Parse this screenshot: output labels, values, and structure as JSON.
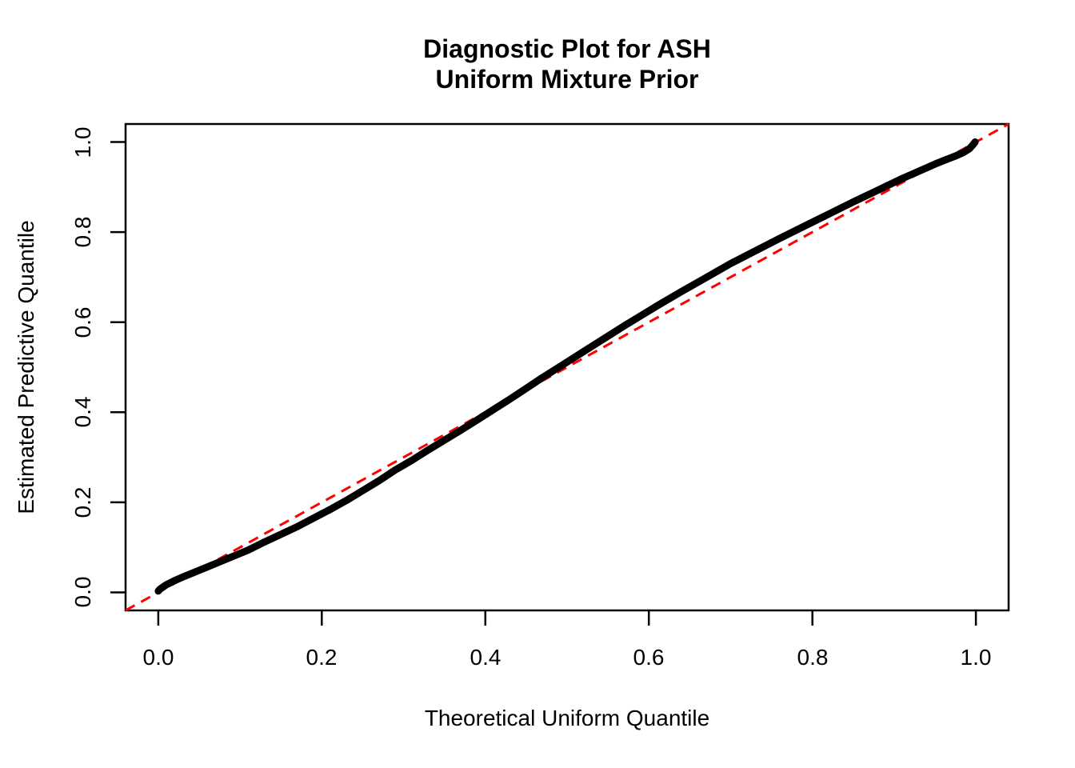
{
  "title": {
    "line1": "Diagnostic Plot for ASH",
    "line2": "Uniform Mixture Prior"
  },
  "colors": {
    "background": "#FFFFFF",
    "foreground": "#000000",
    "reference_line": "#FF0000"
  },
  "chart_data": {
    "type": "line",
    "title": "Diagnostic Plot for ASH\nUniform Mixture Prior",
    "xlabel": "Theoretical Uniform Quantile",
    "ylabel": "Estimated Predictive Quantile",
    "xlim": [
      -0.04,
      1.04
    ],
    "ylim": [
      -0.04,
      1.04
    ],
    "grid": false,
    "legend": false,
    "x_ticks": [
      "0.0",
      "0.2",
      "0.4",
      "0.6",
      "0.8",
      "1.0"
    ],
    "y_ticks": [
      "0.0",
      "0.2",
      "0.4",
      "0.6",
      "0.8",
      "1.0"
    ],
    "series": [
      {
        "name": "estimated-predictive-quantile-curve",
        "color": "#000000",
        "style": "thick-solid",
        "points": [
          [
            0.0,
            0.003
          ],
          [
            0.002,
            0.007
          ],
          [
            0.005,
            0.011
          ],
          [
            0.01,
            0.017
          ],
          [
            0.02,
            0.026
          ],
          [
            0.03,
            0.034
          ],
          [
            0.05,
            0.049
          ],
          [
            0.07,
            0.064
          ],
          [
            0.09,
            0.079
          ],
          [
            0.11,
            0.094
          ],
          [
            0.13,
            0.112
          ],
          [
            0.15,
            0.129
          ],
          [
            0.17,
            0.146
          ],
          [
            0.19,
            0.165
          ],
          [
            0.21,
            0.184
          ],
          [
            0.23,
            0.204
          ],
          [
            0.25,
            0.226
          ],
          [
            0.27,
            0.248
          ],
          [
            0.29,
            0.272
          ],
          [
            0.31,
            0.293
          ],
          [
            0.33,
            0.316
          ],
          [
            0.35,
            0.338
          ],
          [
            0.37,
            0.36
          ],
          [
            0.39,
            0.383
          ],
          [
            0.41,
            0.406
          ],
          [
            0.43,
            0.429
          ],
          [
            0.45,
            0.453
          ],
          [
            0.47,
            0.477
          ],
          [
            0.49,
            0.5
          ],
          [
            0.51,
            0.523
          ],
          [
            0.53,
            0.546
          ],
          [
            0.55,
            0.569
          ],
          [
            0.57,
            0.592
          ],
          [
            0.59,
            0.614
          ],
          [
            0.61,
            0.636
          ],
          [
            0.64,
            0.668
          ],
          [
            0.67,
            0.699
          ],
          [
            0.7,
            0.73
          ],
          [
            0.73,
            0.758
          ],
          [
            0.76,
            0.786
          ],
          [
            0.79,
            0.813
          ],
          [
            0.82,
            0.84
          ],
          [
            0.85,
            0.867
          ],
          [
            0.88,
            0.893
          ],
          [
            0.91,
            0.919
          ],
          [
            0.93,
            0.935
          ],
          [
            0.95,
            0.951
          ],
          [
            0.965,
            0.962
          ],
          [
            0.975,
            0.969
          ],
          [
            0.985,
            0.977
          ],
          [
            0.992,
            0.985
          ],
          [
            0.996,
            0.993
          ],
          [
            0.999,
            1.0
          ]
        ]
      },
      {
        "name": "reference-diagonal",
        "color": "#FF0000",
        "style": "dashed",
        "points": [
          [
            -0.04,
            -0.04
          ],
          [
            1.04,
            1.04
          ]
        ]
      }
    ]
  }
}
